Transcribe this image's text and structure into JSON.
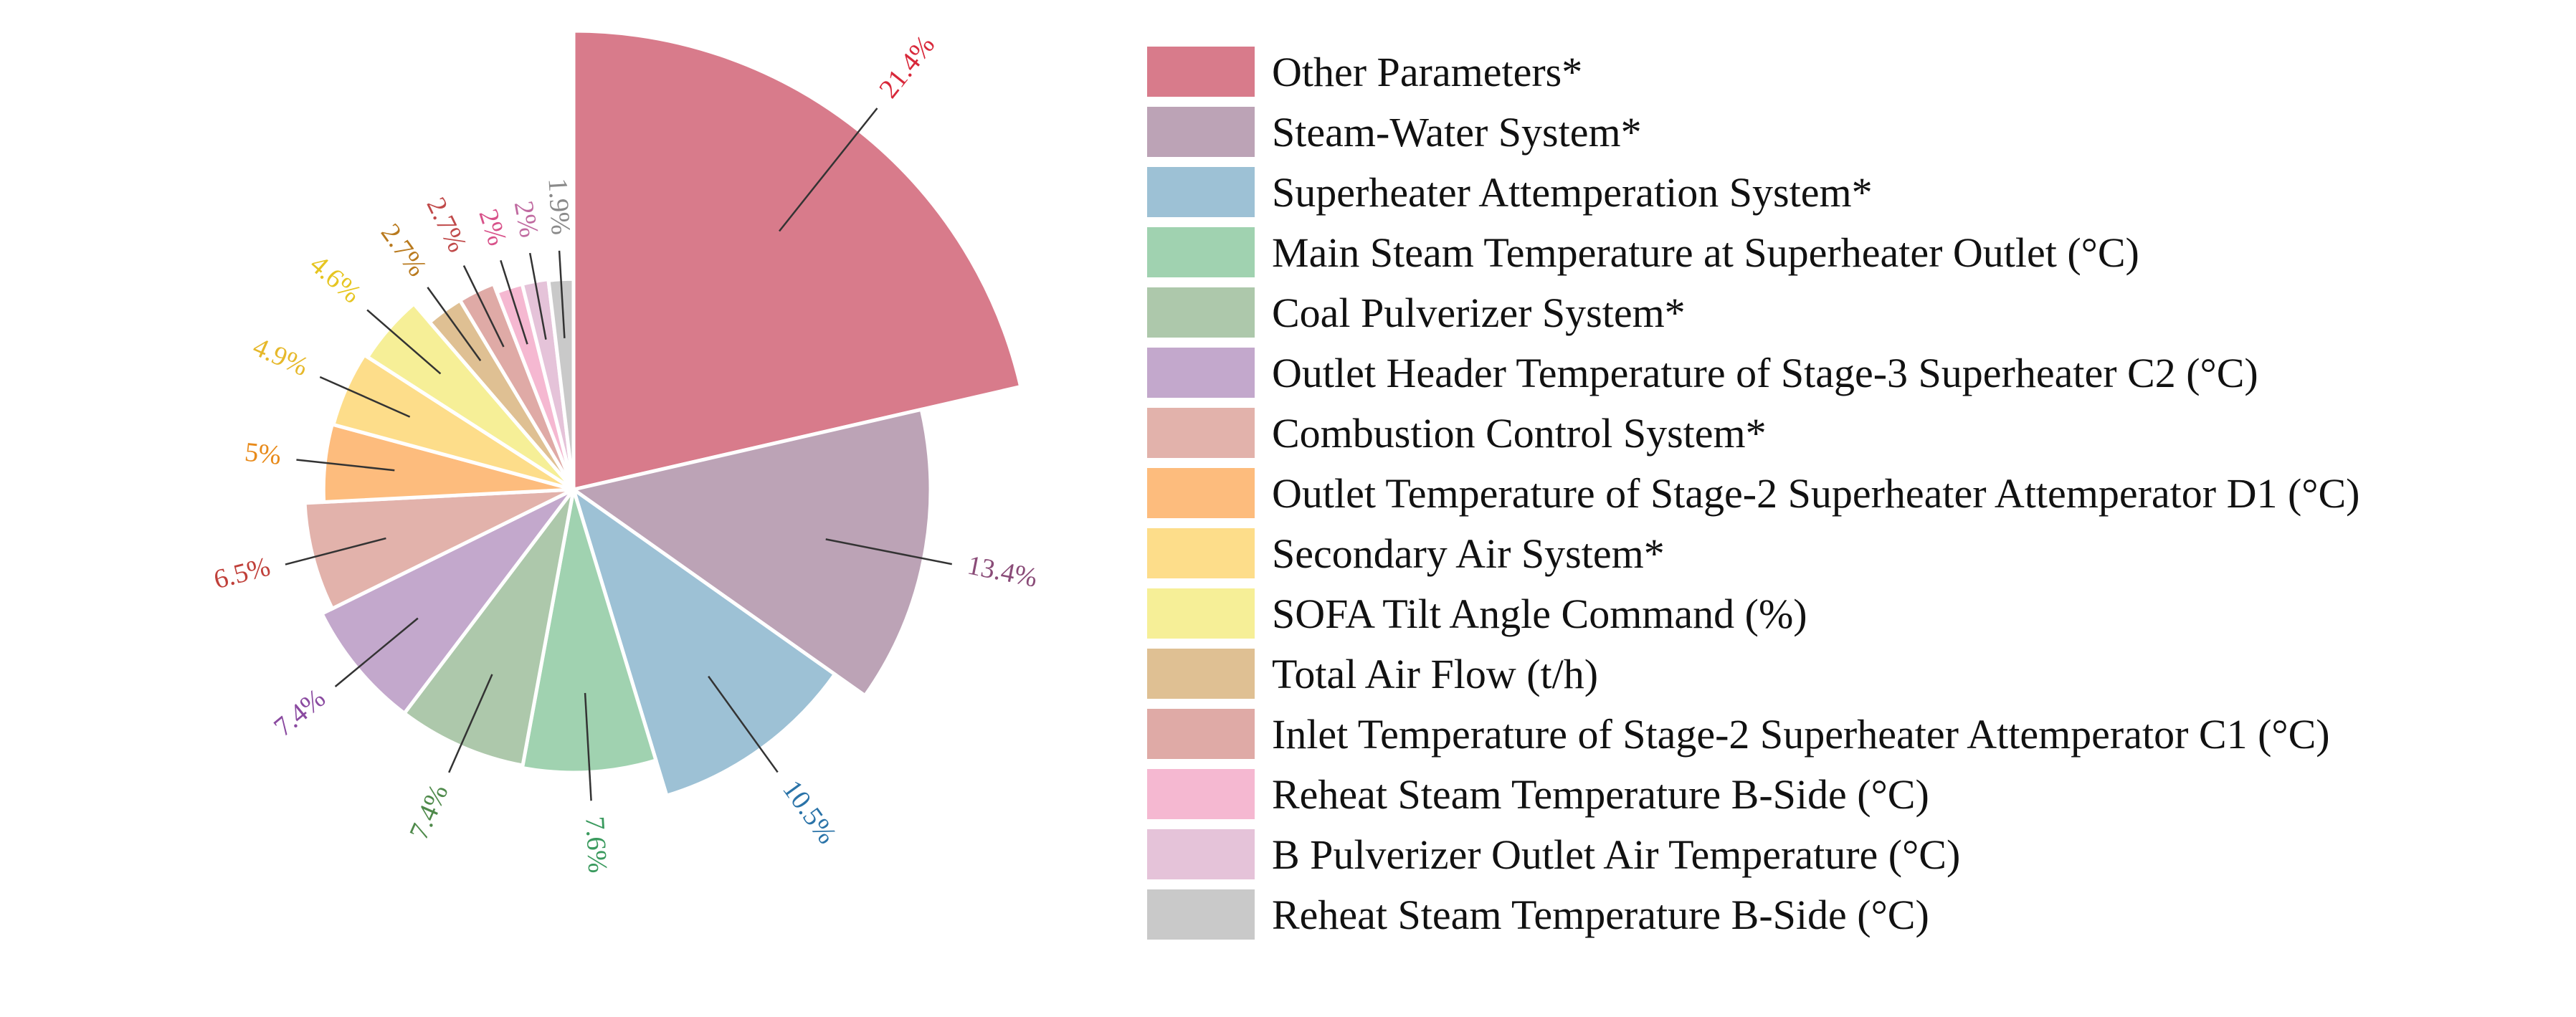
{
  "chart_data": {
    "type": "pie",
    "variant": "rose",
    "legend_position": "right",
    "slices": [
      {
        "label": "Other Parameters*",
        "value": 21.4,
        "display": "21.4%",
        "color": "#d87b8b",
        "label_color": "#d8283a"
      },
      {
        "label": "Steam-Water System*",
        "value": 13.4,
        "display": "13.4%",
        "color": "#bca3b6",
        "label_color": "#8a4c78"
      },
      {
        "label": "Superheater Attemperation System*",
        "value": 10.5,
        "display": "10.5%",
        "color": "#9dc1d5",
        "label_color": "#2a73a8"
      },
      {
        "label": "Main Steam Temperature at Superheater Outlet (°C)",
        "value": 7.6,
        "display": "7.6%",
        "color": "#a0d2b0",
        "label_color": "#3a9a5e"
      },
      {
        "label": "Coal Pulverizer System*",
        "value": 7.4,
        "display": "7.4%",
        "color": "#adc8ab",
        "label_color": "#4f8a4b"
      },
      {
        "label": "Outlet Header Temperature of Stage-3 Superheater C2 (°C)",
        "value": 7.4,
        "display": "7.4%",
        "color": "#c3a8cc",
        "label_color": "#8a4aa0"
      },
      {
        "label": "Combustion Control System*",
        "value": 6.5,
        "display": "6.5%",
        "color": "#e2b2ab",
        "label_color": "#c0403a"
      },
      {
        "label": "Outlet Temperature of Stage-2 Superheater Attemperator D1 (°C)",
        "value": 5.0,
        "display": "5%",
        "color": "#fdbc7d",
        "label_color": "#e88a1a"
      },
      {
        "label": "Secondary Air System*",
        "value": 4.9,
        "display": "4.9%",
        "color": "#fddd8a",
        "label_color": "#e6b82a"
      },
      {
        "label": "SOFA Tilt Angle Command (%)",
        "value": 4.6,
        "display": "4.6%",
        "color": "#f6ef97",
        "label_color": "#e6c520"
      },
      {
        "label": "Total Air Flow (t/h)",
        "value": 2.7,
        "display": "2.7%",
        "color": "#dfc093",
        "label_color": "#b97a1e"
      },
      {
        "label": "Inlet Temperature of Stage-2 Superheater Attemperator C1 (°C)",
        "value": 2.7,
        "display": "2.7%",
        "color": "#dfaaa6",
        "label_color": "#c04a4a"
      },
      {
        "label": "Reheat Steam Temperature B-Side (°C)",
        "value": 2.0,
        "display": "2%",
        "color": "#f5b8d1",
        "label_color": "#d8528a"
      },
      {
        "label": "B Pulverizer Outlet Air Temperature (°C)",
        "value": 2.0,
        "display": "2%",
        "color": "#e5c3d9",
        "label_color": "#c06aa0"
      },
      {
        "label": "Reheat Steam Temperature B-Side (°C)",
        "value": 1.9,
        "display": "1.9%",
        "color": "#c9c9c9",
        "label_color": "#8a8a8a"
      }
    ]
  }
}
